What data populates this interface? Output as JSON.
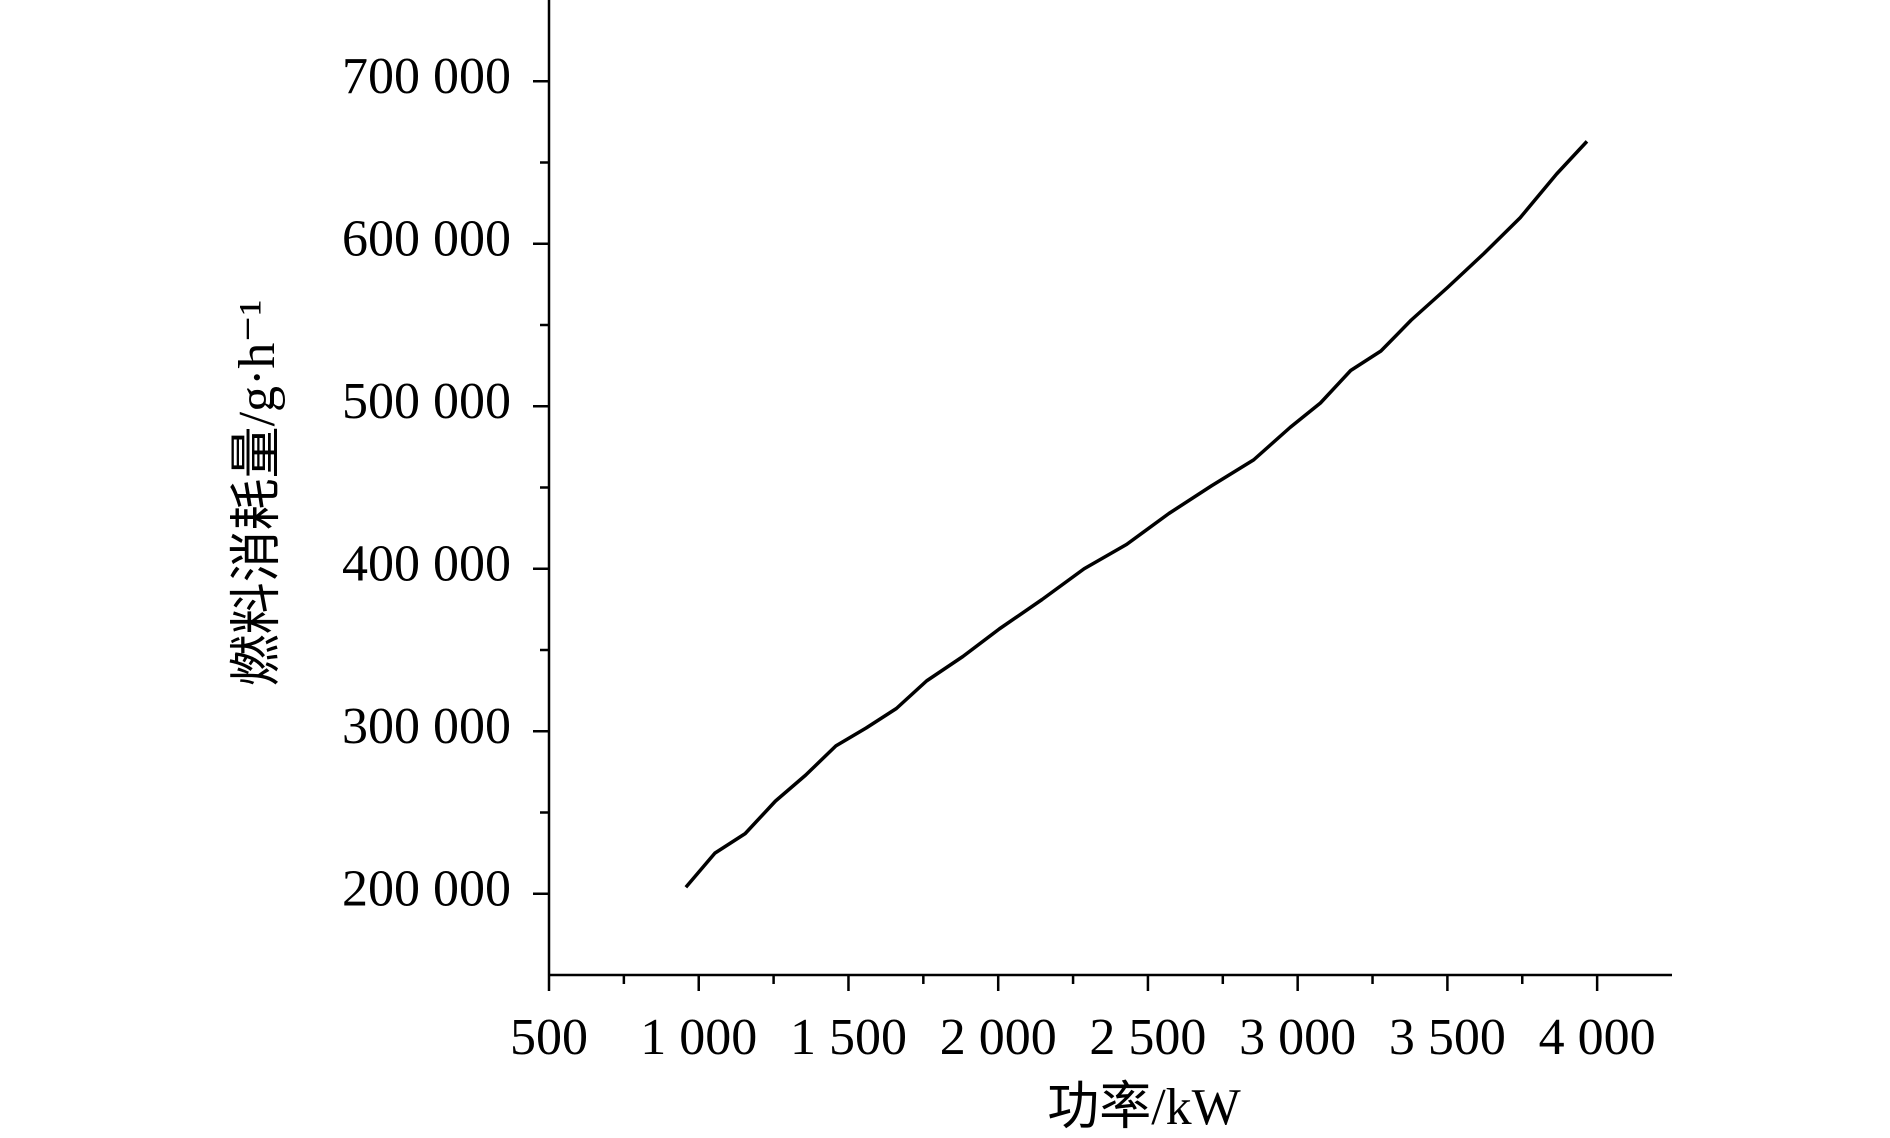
{
  "chart_data": {
    "type": "line",
    "xlabel": "功率/kW",
    "ylabel": "燃料消耗量/g·h⁻¹",
    "x": [
      957,
      1054,
      1155,
      1256,
      1357,
      1458,
      1559,
      1660,
      1761,
      1882,
      2004,
      2146,
      2287,
      2429,
      2570,
      2712,
      2853,
      2975,
      3076,
      3177,
      3278,
      3379,
      3500,
      3622,
      3743,
      3865,
      3966
    ],
    "series": [
      {
        "color": "#000000",
        "values": [
          204000,
          225000,
          237000,
          257000,
          273000,
          291000,
          302000,
          314000,
          331000,
          346000,
          363000,
          381000,
          400000,
          415000,
          434000,
          451000,
          467000,
          487000,
          502000,
          522000,
          534000,
          553000,
          573000,
          594000,
          616000,
          643000,
          663000
        ]
      }
    ],
    "xlim": [
      500,
      4250
    ],
    "ylim": [
      150000,
      750000
    ],
    "xticks": [
      500,
      {
        "value": 1000,
        "label": "1 000"
      },
      {
        "value": 1500,
        "label": "1 500"
      },
      {
        "value": 2000,
        "label": "2 000"
      },
      {
        "value": 2500,
        "label": "2 500"
      },
      {
        "value": 3000,
        "label": "3 000"
      },
      {
        "value": 3500,
        "label": "3 500"
      },
      {
        "value": 4000,
        "label": "4 000"
      }
    ],
    "yticks": [
      {
        "value": 200000,
        "label": "200 000"
      },
      {
        "value": 300000,
        "label": "300 000"
      },
      {
        "value": 400000,
        "label": "400 000"
      },
      {
        "value": 500000,
        "label": "500 000"
      },
      {
        "value": 600000,
        "label": "600 000"
      },
      {
        "value": 700000,
        "label": "700 000"
      }
    ],
    "grid": false
  }
}
